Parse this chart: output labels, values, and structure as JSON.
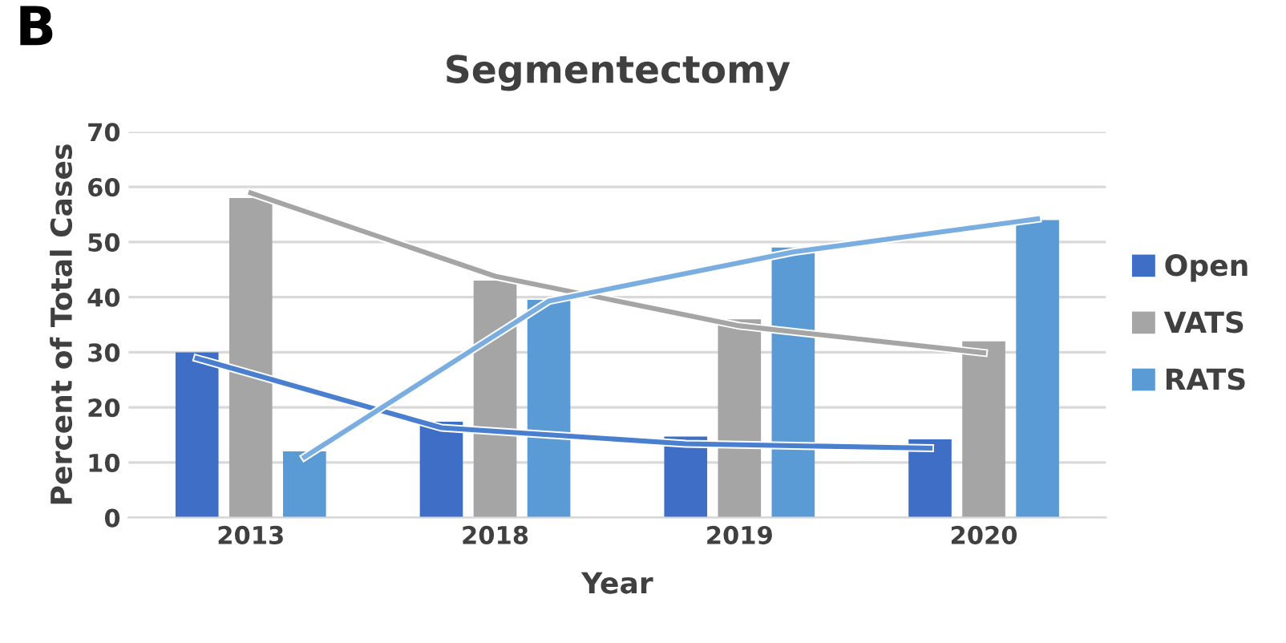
{
  "chart_data": {
    "type": "bar",
    "title": "Segmentectomy",
    "xlabel": "Year",
    "ylabel": "Percent of Total Cases",
    "annotations": [
      "B"
    ],
    "categories": [
      "2013",
      "2018",
      "2019",
      "2020"
    ],
    "series": [
      {
        "name": "Open",
        "color": "#3e6ec6",
        "values": [
          30,
          17.4,
          14.7,
          14.2
        ]
      },
      {
        "name": "VATS",
        "color": "#a5a5a5",
        "values": [
          58,
          43,
          36,
          32
        ]
      },
      {
        "name": "RATS",
        "color": "#5b9bd5",
        "values": [
          12,
          39.5,
          49,
          54
        ]
      },
      {
        "type": "line",
        "color": "#4a7fd0",
        "values": [
          28.9,
          16.3,
          13.4,
          12.6
        ]
      },
      {
        "type": "line",
        "color": "#a5a5a5",
        "values": [
          58.9,
          43.8,
          34.8,
          29.9
        ]
      },
      {
        "type": "line",
        "color": "#7aaee0",
        "values": [
          11,
          39.3,
          48.2,
          54.2
        ]
      }
    ],
    "ylim": [
      0,
      70
    ],
    "yticks": [
      0,
      10,
      20,
      30,
      40,
      50,
      60,
      70
    ],
    "grid": "y",
    "legend": "right"
  }
}
